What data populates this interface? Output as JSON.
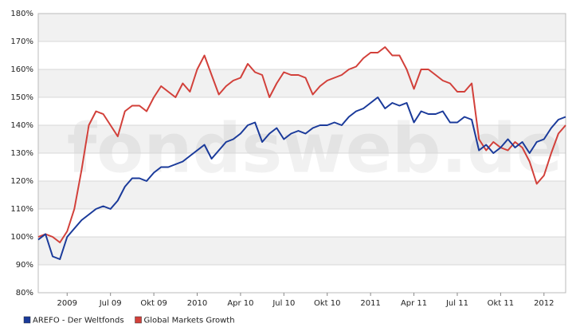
{
  "chart_data": {
    "type": "line",
    "watermark": "fondsweb.de",
    "categories": [
      null,
      null,
      null,
      null,
      "2009",
      null,
      null,
      null,
      null,
      null,
      "Jul 09",
      null,
      null,
      null,
      null,
      null,
      "Okt 09",
      null,
      null,
      null,
      null,
      null,
      "2010",
      null,
      null,
      null,
      null,
      null,
      "Apr 10",
      null,
      null,
      null,
      null,
      null,
      "Jul 10",
      null,
      null,
      null,
      null,
      null,
      "Okt 10",
      null,
      null,
      null,
      null,
      null,
      "2011",
      null,
      null,
      null,
      null,
      null,
      "Apr 11",
      null,
      null,
      null,
      null,
      null,
      "Jul 11",
      null,
      null,
      null,
      null,
      null,
      "Okt 11",
      null,
      null,
      null,
      null,
      null,
      "2012",
      null,
      null,
      null
    ],
    "series": [
      {
        "name": "AREFO - Der Weltfonds",
        "color": "#1a3a9a",
        "values": [
          99,
          101,
          93,
          92,
          100,
          103,
          106,
          108,
          110,
          111,
          110,
          113,
          118,
          121,
          121,
          120,
          123,
          125,
          125,
          126,
          127,
          129,
          131,
          133,
          128,
          131,
          134,
          135,
          137,
          140,
          141,
          134,
          137,
          139,
          135,
          137,
          138,
          137,
          139,
          140,
          140,
          141,
          140,
          143,
          145,
          146,
          148,
          150,
          146,
          148,
          147,
          148,
          141,
          145,
          144,
          144,
          145,
          141,
          141,
          143,
          142,
          131,
          133,
          130,
          132,
          135,
          132,
          134,
          130,
          134,
          135,
          139,
          142,
          143
        ]
      },
      {
        "name": "Global Markets Growth",
        "color": "#d2403a",
        "values": [
          100,
          101,
          100,
          98,
          102,
          110,
          124,
          140,
          145,
          144,
          140,
          136,
          145,
          147,
          147,
          145,
          150,
          154,
          152,
          150,
          155,
          152,
          160,
          165,
          158,
          151,
          154,
          156,
          157,
          162,
          159,
          158,
          150,
          155,
          159,
          158,
          158,
          157,
          151,
          154,
          156,
          157,
          158,
          160,
          161,
          164,
          166,
          166,
          168,
          165,
          165,
          160,
          153,
          160,
          160,
          158,
          156,
          155,
          152,
          152,
          155,
          135,
          131,
          134,
          132,
          131,
          134,
          132,
          127,
          119,
          122,
          130,
          137,
          140
        ]
      }
    ],
    "ylim": [
      80,
      180
    ],
    "yticks": [
      {
        "value": 80,
        "label": "80%"
      },
      {
        "value": 90,
        "label": "90%"
      },
      {
        "value": 100,
        "label": "100%"
      },
      {
        "value": 110,
        "label": "110%"
      },
      {
        "value": 120,
        "label": "120%"
      },
      {
        "value": 130,
        "label": "130%"
      },
      {
        "value": 140,
        "label": "140%"
      },
      {
        "value": 150,
        "label": "150%"
      },
      {
        "value": 160,
        "label": "160%"
      },
      {
        "value": 170,
        "label": "170%"
      },
      {
        "value": 180,
        "label": "180%"
      }
    ],
    "grid": true
  }
}
